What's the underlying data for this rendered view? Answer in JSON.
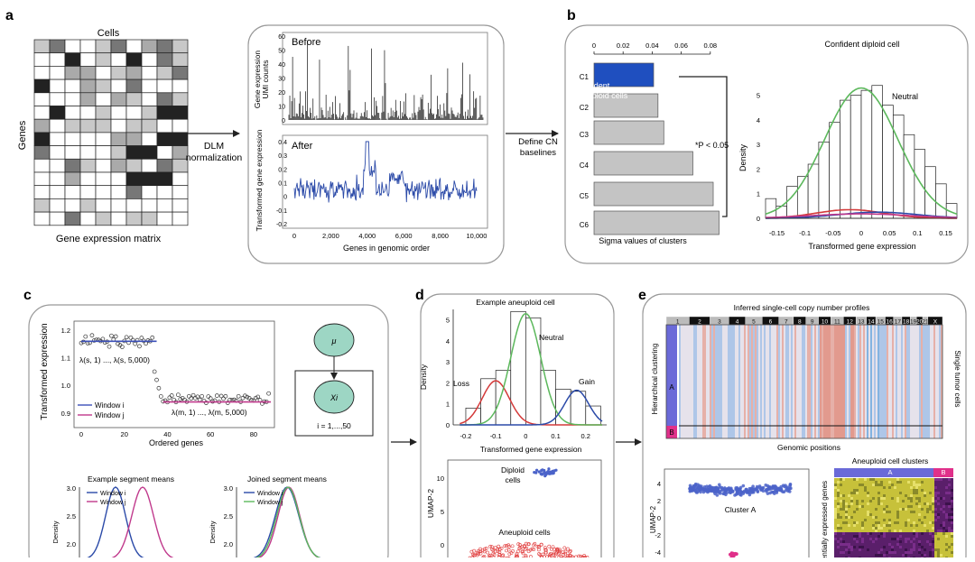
{
  "panels": {
    "a": {
      "letter": "a",
      "matrix_title": "Cells",
      "genes_label": "Genes",
      "matrix_caption": "Gene expression matrix",
      "arrow_label_1": "DLM",
      "arrow_label_2": "normalization",
      "before_title": "Before",
      "before_ylabel_1": "Gene expression",
      "before_ylabel_2": "UMI counts",
      "before_yticks": [
        "60",
        "50",
        "40",
        "30",
        "20",
        "10",
        "0"
      ],
      "after_title": "After",
      "after_ylabel": "Transformed gene expression",
      "after_yticks": [
        "0.4",
        "0.3",
        "0.2",
        "0.1",
        "0",
        "-0.1",
        "-0.2"
      ],
      "after_xticks": [
        "0",
        "2,000",
        "4,000",
        "6,000",
        "8,000",
        "10,000"
      ],
      "after_xlabel": "Genes in genomic order"
    },
    "b": {
      "letter": "b",
      "arrow_label_1": "Define CN",
      "arrow_label_2": "baselines",
      "sigma_xticks": [
        "0",
        "0.02",
        "0.04",
        "0.06",
        "0.08"
      ],
      "clusters": [
        "C1",
        "C2",
        "C3",
        "C4",
        "C5",
        "C6"
      ],
      "confident_label_1": "Confident",
      "confident_label_2": "diploid cells",
      "pvalue": "*P < 0.05",
      "sigma_caption": "Sigma values of clusters",
      "hist_title": "Confident diploid cell",
      "hist_ylabel": "Density",
      "hist_yticks": [
        "5",
        "4",
        "3",
        "2",
        "1",
        "0"
      ],
      "hist_xticks": [
        "-0.15",
        "-0.1",
        "-0.05",
        "0",
        "0.05",
        "0.1",
        "0.15"
      ],
      "hist_xlabel": "Transformed gene expression",
      "neutral_label": "Neutral"
    },
    "c": {
      "letter": "c",
      "scatter_ylabel": "Transformed expression",
      "scatter_yticks": [
        "1.2",
        "1.1",
        "1.0",
        "0.9"
      ],
      "scatter_xticks": [
        "0",
        "20",
        "40",
        "60",
        "80"
      ],
      "scatter_xlabel": "Ordered genes",
      "lambda_s": "λ(s, 1) ..., λ(s, 5,000)",
      "lambda_m": "λ(m, 1) ..., λ(m, 5,000)",
      "legend_i": "Window i",
      "legend_j": "Window j",
      "mu": "μ",
      "xi": "Xi",
      "plate_label": "i = 1,...,50",
      "seg_title_1": "Example segment means",
      "seg_title_2": "Joined segment means",
      "seg_yticks": [
        "3.0",
        "2.5",
        "2.0"
      ],
      "density": "Density"
    },
    "d": {
      "letter": "d",
      "hist_title": "Example aneuploid cell",
      "hist_ylabel": "Density",
      "hist_yticks": [
        "5",
        "4",
        "3",
        "2",
        "1",
        "0"
      ],
      "hist_xticks": [
        "-0.2",
        "-0.1",
        "0",
        "0.1",
        "0.2"
      ],
      "hist_xlabel": "Transformed gene expression",
      "loss": "Loss",
      "neutral": "Neutral",
      "gain": "Gain",
      "umap_ylabel": "UMAP-2",
      "umap_yticks": [
        "10",
        "5",
        "0"
      ],
      "diploid_1": "Diploid",
      "diploid_2": "cells",
      "aneuploid": "Aneuploid cells"
    },
    "e": {
      "letter": "e",
      "heatmap_title": "Inferred single-cell copy number profiles",
      "chromosomes": [
        "1",
        "2",
        "3",
        "4",
        "5",
        "6",
        "7",
        "8",
        "9",
        "10",
        "11",
        "12",
        "13",
        "14",
        "15",
        "16",
        "17",
        "18",
        "19",
        "20",
        "21",
        "X"
      ],
      "hier_label": "Hierarchical clustering",
      "single_tumor": "Single tumor cells",
      "cluster_a": "A",
      "cluster_b": "B",
      "genomic_positions": "Genomic positions",
      "umap_ylabel": "UMAP-2",
      "umap_yticks": [
        "4",
        "2",
        "0",
        "-2",
        "-4"
      ],
      "cluster_a_label": "Cluster A",
      "aneuploid_clusters": "Aneuploid cell clusters",
      "diff_genes": "entially expressed genes"
    }
  },
  "colors": {
    "blue": "#2b4aa8",
    "green": "#5cb85c",
    "red": "#d43a3a",
    "magenta": "#c0398c",
    "umap_blue": "#4b63c9",
    "umap_red": "#e03c3c",
    "cluster_a_bar": "#6a6ad8",
    "cluster_b_bar": "#e0308a"
  }
}
